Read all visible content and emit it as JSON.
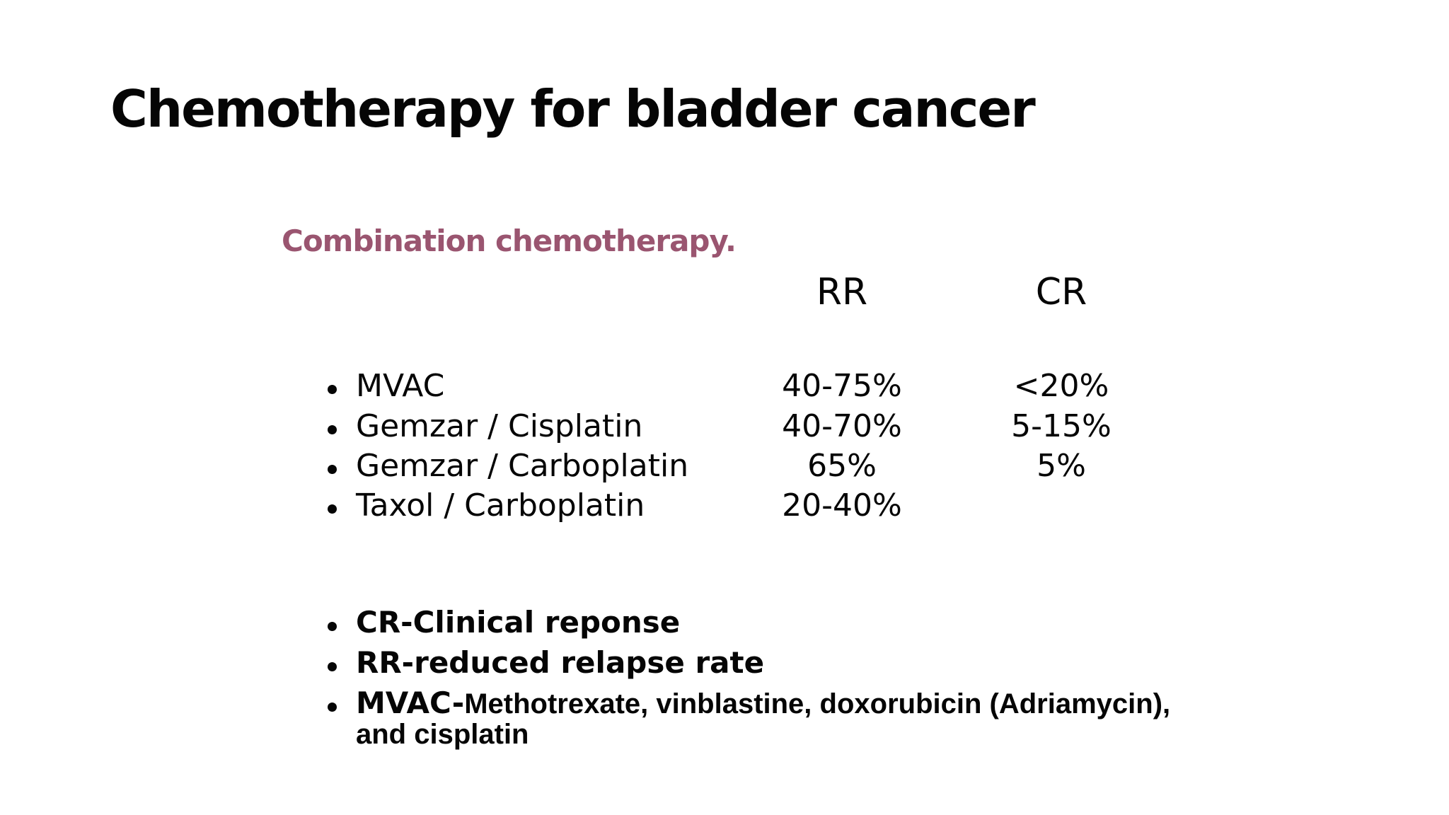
{
  "slide": {
    "title": "Chemotherapy for bladder cancer",
    "subtitle": "Combination chemotherapy.",
    "colors": {
      "background": "#ffffff",
      "text": "#050505",
      "subtitle_accent": "#9a5570"
    },
    "table": {
      "headers": {
        "rr": "RR",
        "cr": "CR"
      },
      "rows": [
        {
          "name": "MVAC",
          "rr": "40-75%",
          "cr": "<20%"
        },
        {
          "name": "Gemzar / Cisplatin",
          "rr": "40-70%",
          "cr": "5-15%"
        },
        {
          "name": "Gemzar / Carboplatin",
          "rr": "65%",
          "cr": "5%"
        },
        {
          "name": "Taxol / Carboplatin",
          "rr": "20-40%",
          "cr": ""
        }
      ]
    },
    "notes": [
      {
        "text": "CR-Clinical reponse"
      },
      {
        "text": "RR-reduced relapse rate"
      },
      {
        "prefix": "MVAC-",
        "text": "Methotrexate, vinblastine, doxorubicin (Adriamycin),",
        "continuation": "and cisplatin"
      }
    ]
  }
}
